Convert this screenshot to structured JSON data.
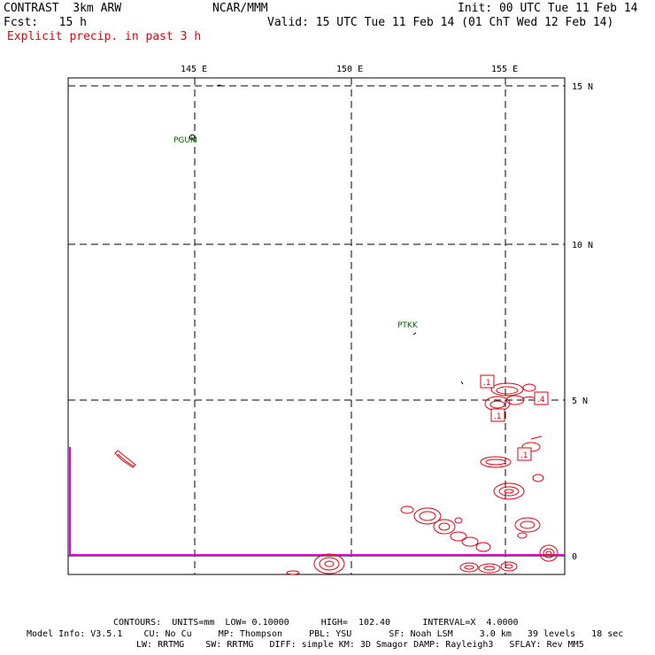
{
  "header": {
    "model": "CONTRAST  3km ARW",
    "org": "NCAR/MMM",
    "init": "Init: 00 UTC Tue 11 Feb 14",
    "fcst": "Fcst:   15 h",
    "valid": "Valid: 15 UTC Tue 11 Feb 14 (01 ChT Wed 12 Feb 14)",
    "field": "Explicit precip. in past 3 h"
  },
  "axes": {
    "lon_labels": [
      "145 E",
      "150 E",
      "155 E"
    ],
    "lat_labels": [
      "15 N",
      "10 N",
      "5 N",
      "0"
    ]
  },
  "stations": [
    "PGUM",
    "PTKK"
  ],
  "contour_labels": [
    ".1",
    ".1",
    ".4",
    ".1"
  ],
  "footer": {
    "contours": "CONTOURS:  UNITS=mm  LOW= 0.10000      HIGH=  102.40      INTERVAL=X  4.0000",
    "model_info_1": "Model Info: V3.5.1    CU: No Cu     MP: Thompson     PBL: YSU       SF: Noah LSM     3.0 km   39 levels   18 sec",
    "model_info_2": "LW: RRTMG    SW: RRTMG   DIFF: simple KM: 3D Smagor DAMP: Rayleigh3   SFLAY: Rev MM5"
  },
  "colors": {
    "precip_contour": "#e0000f",
    "station": "#006600",
    "boundary": "#e000e0"
  }
}
